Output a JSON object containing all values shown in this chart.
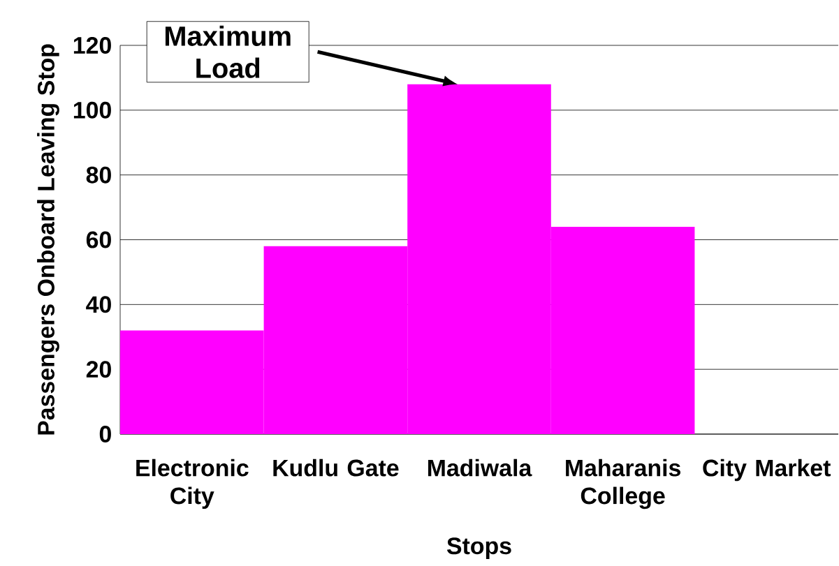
{
  "chart_data": {
    "type": "bar",
    "categories": [
      "Electronic City",
      "Kudlu Gate",
      "Madiwala",
      "Maharanis College",
      "City Market"
    ],
    "values": [
      32,
      58,
      108,
      64,
      0
    ],
    "color": "#ff00ff",
    "xlabel": "Stops",
    "ylabel": "Passengers Onboard Leaving Stop",
    "ylim": [
      0,
      120
    ],
    "yticks": [
      0,
      20,
      40,
      60,
      80,
      100,
      120
    ],
    "grid": "y",
    "annotations": [
      "Maximum Load"
    ]
  }
}
